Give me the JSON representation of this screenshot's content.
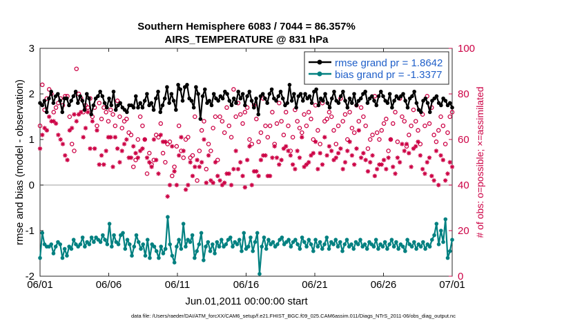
{
  "chart_data": {
    "type": "line",
    "title_line1": "Southern Hemisphere 6083 / 7044 = 86.357%",
    "title_line2": "AIRS_TEMPERATURE @ 831 hPa",
    "xlabel": "Jun.01,2011 00:00:00 start",
    "ylabel_left": "rmse and bias (model - observation)",
    "ylabel_right": "# of obs: o=possible; ×=assimilated",
    "footnote": "data file: /Users/raeder/DAI/ATM_forcXX/CAM6_setup/f.e21.FHIST_BGC.f09_025.CAM6assim.011/Diags_NTrS_2011-06/obs_diag_output.nc",
    "xlim": [
      0,
      30
    ],
    "ylim_left": [
      -2,
      3
    ],
    "ylim_right": [
      0,
      100
    ],
    "x_ticks": [
      0,
      5,
      10,
      15,
      20,
      25,
      30
    ],
    "x_tick_labels": [
      "06/01",
      "06/06",
      "06/11",
      "06/16",
      "06/21",
      "06/26",
      "07/01"
    ],
    "y_ticks_left": [
      -2,
      -1,
      0,
      1,
      2,
      3
    ],
    "y_ticks_right": [
      0,
      20,
      40,
      60,
      80,
      100
    ],
    "zero_line": 0,
    "legend": [
      {
        "label": "rmse grand pr = 1.8642",
        "color": "#000000",
        "marker": "dot"
      },
      {
        "label": "bias grand pr = -1.3377",
        "color": "#008080",
        "marker": "dot"
      }
    ],
    "series": [
      {
        "name": "rmse",
        "axis": "left",
        "color": "#000000",
        "values": [
          1.8,
          1.75,
          1.85,
          1.6,
          1.9,
          2.05,
          1.8,
          1.95,
          2.0,
          1.85,
          1.6,
          1.9,
          1.9,
          1.75,
          1.85,
          1.95,
          2.05,
          1.8,
          1.95,
          1.85,
          1.65,
          2.0,
          1.9,
          1.55,
          1.75,
          1.9,
          1.95,
          2.05,
          1.95,
          1.8,
          1.7,
          1.9,
          1.75,
          2.05,
          1.65,
          1.75,
          1.8,
          1.7,
          1.65,
          1.6,
          1.75,
          1.75,
          1.7,
          1.95,
          1.7,
          1.8,
          1.7,
          1.85,
          2.0,
          1.75,
          1.8,
          1.65,
          1.9,
          2.05,
          1.6,
          1.75,
          1.9,
          2.15,
          1.8,
          2.0,
          1.85,
          1.65,
          2.2,
          2.1,
          1.85,
          2.15,
          2.2,
          1.9,
          1.85,
          1.7,
          2.15,
          2.0,
          1.45,
          1.95,
          2.1,
          1.8,
          1.85,
          1.75,
          2.0,
          1.9,
          1.85,
          1.95,
          1.9,
          2.05,
          2.0,
          1.85,
          1.75,
          1.9,
          1.8,
          2.05,
          1.9,
          2.0,
          1.75,
          1.95,
          2.05,
          1.85,
          1.7,
          1.9,
          1.55,
          1.95,
          2.0,
          1.9,
          1.8,
          2.0,
          2.1,
          1.9,
          1.85,
          1.95,
          2.05,
          1.9,
          1.75,
          1.8,
          2.2,
          1.85,
          2.0,
          1.7,
          1.95,
          2.0,
          1.85,
          2.0,
          1.9,
          1.95,
          1.8,
          2.05,
          2.1,
          1.75,
          1.9,
          1.85,
          2.0,
          1.8,
          1.7,
          1.9,
          2.05,
          1.85,
          1.8,
          1.95,
          2.05,
          1.85,
          1.7,
          1.9,
          1.8,
          2.0,
          1.75,
          1.85,
          1.9,
          2.0,
          2.05,
          1.8,
          1.9,
          1.95,
          1.85,
          1.75,
          1.95,
          2.05,
          1.95,
          1.85,
          1.8,
          2.0,
          1.7,
          1.85,
          1.95,
          1.9,
          1.95,
          2.0,
          1.85,
          1.7,
          1.9,
          1.95,
          2.05,
          1.8,
          1.65,
          1.6,
          1.85,
          1.9,
          1.8,
          1.6,
          1.85,
          1.9,
          1.95,
          1.8,
          1.75,
          1.9,
          1.85,
          1.75,
          1.8,
          1.7
        ]
      },
      {
        "name": "bias",
        "axis": "left",
        "color": "#008080",
        "values": [
          -1.6,
          -1.05,
          -1.3,
          -1.35,
          -1.35,
          -1.3,
          -1.5,
          -1.35,
          -1.25,
          -1.3,
          -1.6,
          -1.4,
          -1.55,
          -1.35,
          -1.4,
          -1.2,
          -1.3,
          -1.35,
          -1.3,
          -1.15,
          -1.35,
          -1.25,
          -1.3,
          -1.15,
          -1.25,
          -1.15,
          -1.2,
          -1.25,
          -1.1,
          -1.2,
          -1.3,
          -0.85,
          -1.35,
          -1.1,
          -1.25,
          -1.3,
          -1.1,
          -1.05,
          -1.4,
          -1.2,
          -1.3,
          -1.55,
          -1.35,
          -1.1,
          -1.25,
          -1.4,
          -1.3,
          -1.55,
          -1.2,
          -1.6,
          -1.3,
          -1.35,
          -1.45,
          -1.6,
          -1.35,
          -1.5,
          -1.4,
          -0.7,
          -1.3,
          -1.55,
          -1.7,
          -1.35,
          -1.2,
          -1.4,
          -0.85,
          -1.35,
          -1.2,
          -1.25,
          -1.1,
          -1.6,
          -1.45,
          -1.3,
          -1.05,
          -1.65,
          -1.35,
          -1.25,
          -1.45,
          -1.3,
          -1.5,
          -1.25,
          -1.35,
          -1.2,
          -1.35,
          -1.3,
          -1.2,
          -1.15,
          -1.35,
          -1.25,
          -1.3,
          -1.2,
          -1.45,
          -1.05,
          -1.4,
          -1.35,
          -1.15,
          -1.45,
          -1.25,
          -1.05,
          -1.95,
          -1.35,
          -1.15,
          -1.4,
          -1.2,
          -1.3,
          -1.25,
          -1.35,
          -1.3,
          -1.2,
          -1.15,
          -1.3,
          -1.25,
          -1.2,
          -1.35,
          -1.25,
          -1.2,
          -1.3,
          -1.4,
          -1.15,
          -1.25,
          -1.35,
          -1.2,
          -1.3,
          -1.45,
          -1.2,
          -1.35,
          -1.25,
          -1.4,
          -1.3,
          -1.15,
          -1.4,
          -1.25,
          -1.3,
          -1.2,
          -1.35,
          -1.25,
          -1.45,
          -1.3,
          -1.2,
          -1.35,
          -1.3,
          -1.4,
          -1.25,
          -1.3,
          -1.2,
          -1.35,
          -1.3,
          -1.4,
          -1.25,
          -1.3,
          -1.35,
          -1.2,
          -1.4,
          -1.3,
          -1.35,
          -1.25,
          -1.4,
          -1.3,
          -1.2,
          -1.35,
          -1.25,
          -1.4,
          -1.3,
          -1.35,
          -1.45,
          -1.2,
          -1.3,
          -1.35,
          -1.25,
          -1.4,
          -1.3,
          -1.35,
          -1.25,
          -1.4,
          -1.3,
          -1.35,
          -1.2,
          -1.1,
          -0.85,
          -1.3,
          -1.0,
          -1.25,
          -0.75,
          -1.6,
          -1.45,
          -1.2
        ]
      },
      {
        "name": "obs possible",
        "axis": "right",
        "color": "#cc0044",
        "marker": "circle",
        "values": [
          66,
          84,
          73,
          78,
          82,
          80,
          72,
          74,
          76,
          78,
          75,
          79,
          79,
          70,
          58,
          55,
          91,
          80,
          78,
          72,
          75,
          74,
          78,
          70,
          74,
          66,
          76,
          69,
          74,
          72,
          68,
          73,
          71,
          66,
          77,
          70,
          65,
          68,
          69,
          63,
          62,
          48,
          51,
          60,
          70,
          66,
          60,
          45,
          54,
          49,
          51,
          62,
          61,
          67,
          54,
          50,
          58,
          59,
          44,
          48,
          57,
          66,
          55,
          52,
          60,
          61,
          52,
          53,
          70,
          42,
          55,
          64,
          68,
          47,
          58,
          55,
          65,
          70,
          51,
          70,
          68,
          63,
          74,
          66,
          61,
          82,
          70,
          76,
          71,
          67,
          72,
          74,
          60,
          58,
          75,
          69,
          59,
          63,
          78,
          66,
          61,
          66,
          72,
          58,
          67,
          76,
          68,
          62,
          72,
          66,
          55,
          61,
          73,
          68,
          65,
          63,
          71,
          66,
          72,
          69,
          60,
          75,
          64,
          58,
          76,
          68,
          69,
          72,
          70,
          64,
          58,
          66,
          78,
          68,
          71,
          60,
          72,
          65,
          63,
          75,
          68,
          74,
          70,
          66,
          56,
          60,
          62,
          79,
          63,
          60,
          64,
          67,
          69,
          55,
          60,
          67,
          72,
          59,
          78,
          70,
          68,
          57,
          62,
          66,
          73,
          68,
          64,
          58,
          71,
          66,
          79,
          67,
          74,
          62,
          59,
          64,
          70,
          66,
          58,
          63,
          70,
          72
        ]
      },
      {
        "name": "obs assimilated",
        "axis": "right",
        "color": "#cc0044",
        "marker": "asterisk",
        "values": [
          56,
          62,
          65,
          64,
          70,
          68,
          68,
          67,
          62,
          60,
          58,
          53,
          51,
          64,
          65,
          71,
          68,
          71,
          72,
          61,
          65,
          72,
          56,
          68,
          56,
          64,
          49,
          53,
          49,
          55,
          61,
          61,
          48,
          61,
          56,
          50,
          55,
          58,
          60,
          52,
          52,
          57,
          54,
          52,
          55,
          56,
          60,
          52,
          50,
          48,
          60,
          51,
          45,
          62,
          59,
          59,
          35,
          40,
          57,
          46,
          40,
          53,
          61,
          55,
          38,
          40,
          50,
          44,
          48,
          51,
          48,
          50,
          60,
          41,
          53,
          42,
          41,
          50,
          44,
          42,
          40,
          41,
          45,
          45,
          40,
          47,
          55,
          47,
          50,
          44,
          39,
          51,
          57,
          40,
          46,
          46,
          44,
          51,
          53,
          53,
          44,
          44,
          52,
          57,
          52,
          49,
          51,
          56,
          57,
          55,
          53,
          49,
          47,
          55,
          52,
          61,
          48,
          49,
          50,
          53,
          54,
          59,
          47,
          54,
          49,
          61,
          53,
          57,
          55,
          51,
          52,
          54,
          56,
          47,
          50,
          55,
          59,
          53,
          49,
          56,
          64,
          52,
          54,
          51,
          46,
          50,
          53,
          44,
          47,
          49,
          49,
          51,
          47,
          52,
          60,
          48,
          45,
          52,
          50,
          58,
          55,
          58,
          54,
          48,
          56,
          57,
          59,
          53,
          47,
          45,
          50,
          52,
          44,
          42,
          55,
          40,
          53,
          51,
          42,
          45,
          50,
          48
        ]
      }
    ]
  }
}
